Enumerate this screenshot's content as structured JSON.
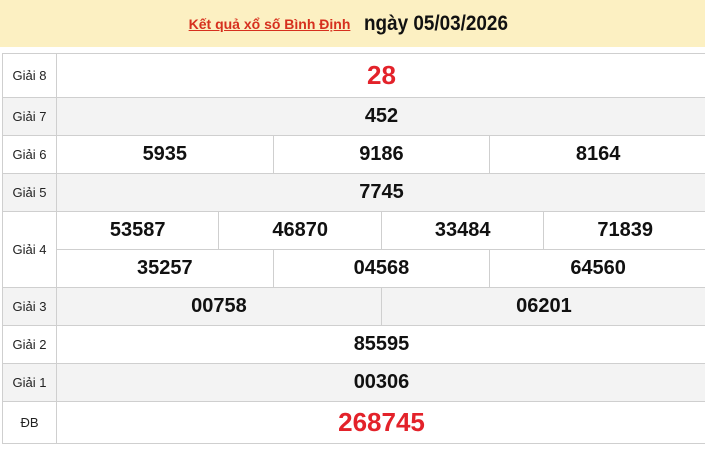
{
  "header": {
    "link": "Kết quả xổ số Bình Định",
    "date": "ngày 05/03/2026"
  },
  "prizes": {
    "g8": {
      "label": "Giải 8",
      "values": [
        "28"
      ]
    },
    "g7": {
      "label": "Giải 7",
      "values": [
        "452"
      ]
    },
    "g6": {
      "label": "Giải 6",
      "values": [
        "5935",
        "9186",
        "8164"
      ]
    },
    "g5": {
      "label": "Giải 5",
      "values": [
        "7745"
      ]
    },
    "g4": {
      "label": "Giải 4",
      "values": [
        "53587",
        "46870",
        "33484",
        "71839",
        "35257",
        "04568",
        "64560"
      ]
    },
    "g3": {
      "label": "Giải 3",
      "values": [
        "00758",
        "06201"
      ]
    },
    "g2": {
      "label": "Giải 2",
      "values": [
        "85595"
      ]
    },
    "g1": {
      "label": "Giải 1",
      "values": [
        "00306"
      ]
    },
    "db": {
      "label": "ĐB",
      "values": [
        "268745"
      ]
    }
  },
  "colors": {
    "header_bg": "#fcf0c2",
    "highlight": "#e3222a",
    "link": "#d6301e"
  }
}
